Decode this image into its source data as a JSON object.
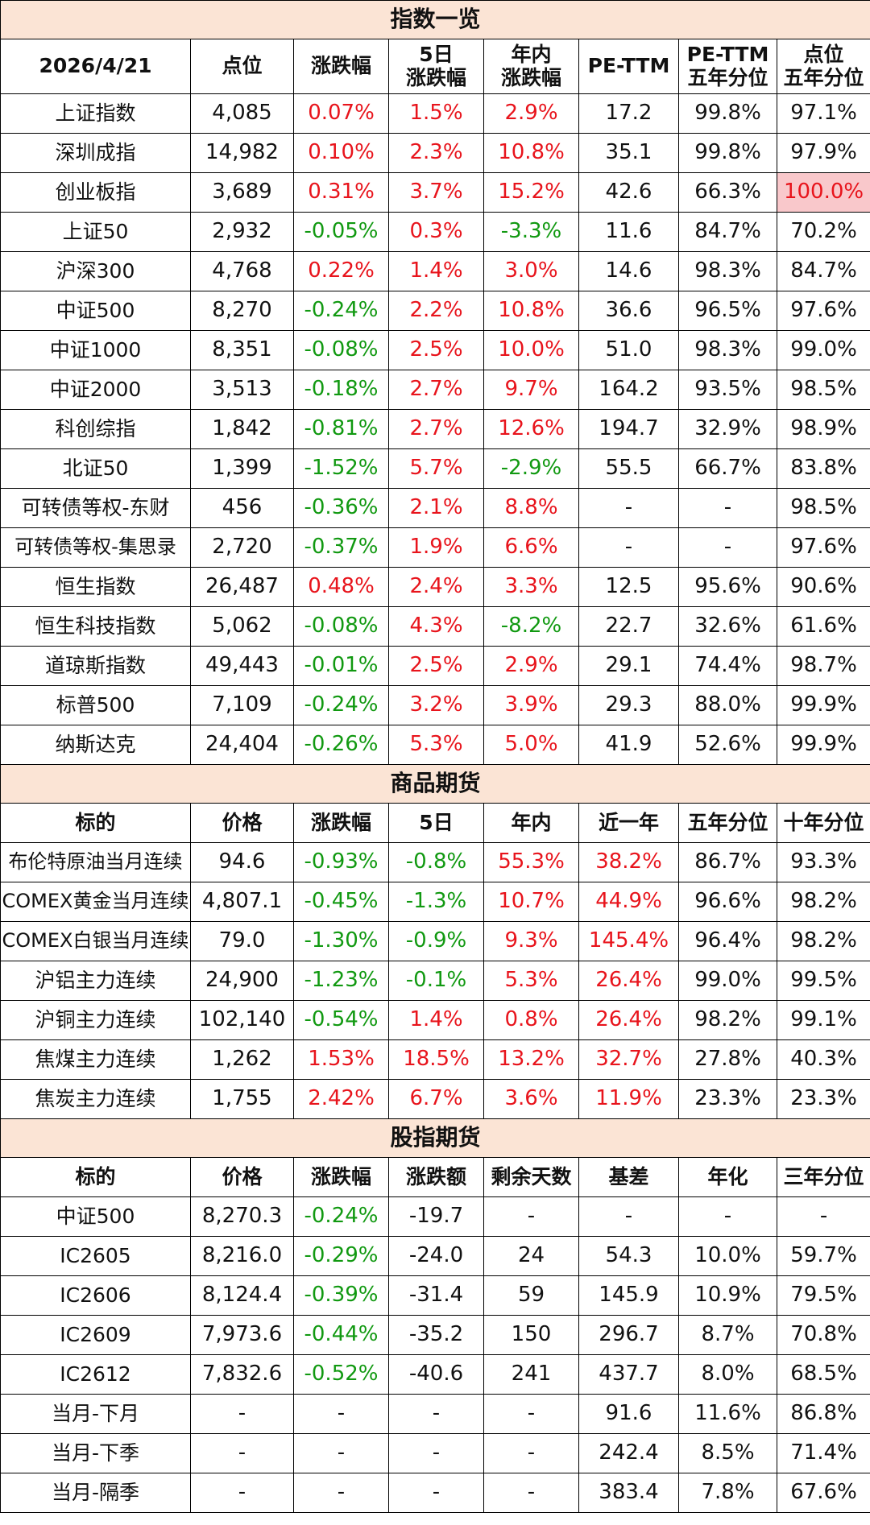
{
  "index_table": {
    "title": "指数一览",
    "date_label": "2026/4/21",
    "headers": [
      "点位",
      "涨跌幅",
      "5日\n涨跌幅",
      "年内\n涨跌幅",
      "PE-TTM",
      "PE-TTM\n五年分位",
      "点位\n五年分位"
    ],
    "rows": [
      [
        "上证指数",
        "4,085",
        "0.07%",
        "1.5%",
        "2.9%",
        "17.2",
        "99.8%",
        "97.1%"
      ],
      [
        "深圳成指",
        "14,982",
        "0.10%",
        "2.3%",
        "10.8%",
        "35.1",
        "99.8%",
        "97.9%"
      ],
      [
        "创业板指",
        "3,689",
        "0.31%",
        "3.7%",
        "15.2%",
        "42.6",
        "66.3%",
        "100.0%"
      ],
      [
        "上证50",
        "2,932",
        "-0.05%",
        "0.3%",
        "-3.3%",
        "11.6",
        "84.7%",
        "70.2%"
      ],
      [
        "沪深300",
        "4,768",
        "0.22%",
        "1.4%",
        "3.0%",
        "14.6",
        "98.3%",
        "84.7%"
      ],
      [
        "中证500",
        "8,270",
        "-0.24%",
        "2.2%",
        "10.8%",
        "36.6",
        "96.5%",
        "97.6%"
      ],
      [
        "中证1000",
        "8,351",
        "-0.08%",
        "2.5%",
        "10.0%",
        "51.0",
        "98.3%",
        "99.0%"
      ],
      [
        "中证2000",
        "3,513",
        "-0.18%",
        "2.7%",
        "9.7%",
        "164.2",
        "93.5%",
        "98.5%"
      ],
      [
        "科创综指",
        "1,842",
        "-0.81%",
        "2.7%",
        "12.6%",
        "194.7",
        "32.9%",
        "98.9%"
      ],
      [
        "北证50",
        "1,399",
        "-1.52%",
        "5.7%",
        "-2.9%",
        "55.5",
        "66.7%",
        "83.8%"
      ],
      [
        "可转债等权-东财",
        "456",
        "-0.36%",
        "2.1%",
        "8.8%",
        "-",
        "-",
        "98.5%"
      ],
      [
        "可转债等权-集思录",
        "2,720",
        "-0.37%",
        "1.9%",
        "6.6%",
        "-",
        "-",
        "97.6%"
      ],
      [
        "恒生指数",
        "26,487",
        "0.48%",
        "2.4%",
        "3.3%",
        "12.5",
        "95.6%",
        "90.6%"
      ],
      [
        "恒生科技指数",
        "5,062",
        "-0.08%",
        "4.3%",
        "-8.2%",
        "22.7",
        "32.6%",
        "61.6%"
      ],
      [
        "道琼斯指数",
        "49,443",
        "-0.01%",
        "2.5%",
        "2.9%",
        "29.1",
        "74.4%",
        "98.7%"
      ],
      [
        "标普500",
        "7,109",
        "-0.24%",
        "3.2%",
        "3.9%",
        "29.3",
        "88.0%",
        "99.9%"
      ],
      [
        "纳斯达克",
        "24,404",
        "-0.26%",
        "5.3%",
        "5.0%",
        "41.9",
        "52.6%",
        "99.9%"
      ]
    ],
    "highlight_cell": {
      "row": 2,
      "col": 7,
      "color": "#f9c8cb"
    }
  },
  "commodity_table": {
    "title": "商品期货",
    "headers": [
      "标的",
      "价格",
      "涨跌幅",
      "5日",
      "年内",
      "近一年",
      "五年分位",
      "十年分位"
    ],
    "rows": [
      [
        "布伦特原油当月连续",
        "94.6",
        "-0.93%",
        "-0.8%",
        "55.3%",
        "38.2%",
        "86.7%",
        "93.3%"
      ],
      [
        "COMEX黄金当月连续",
        "4,807.1",
        "-0.45%",
        "-1.3%",
        "10.7%",
        "44.9%",
        "96.6%",
        "98.2%"
      ],
      [
        "COMEX白银当月连续",
        "79.0",
        "-1.30%",
        "-0.9%",
        "9.3%",
        "145.4%",
        "96.4%",
        "98.2%"
      ],
      [
        "沪铝主力连续",
        "24,900",
        "-1.23%",
        "-0.1%",
        "5.3%",
        "26.4%",
        "99.0%",
        "99.5%"
      ],
      [
        "沪铜主力连续",
        "102,140",
        "-0.54%",
        "1.4%",
        "0.8%",
        "26.4%",
        "98.2%",
        "99.1%"
      ],
      [
        "焦煤主力连续",
        "1,262",
        "1.53%",
        "18.5%",
        "13.2%",
        "32.7%",
        "27.8%",
        "40.3%"
      ],
      [
        "焦炭主力连续",
        "1,755",
        "2.42%",
        "6.7%",
        "3.6%",
        "11.9%",
        "23.3%",
        "23.3%"
      ]
    ]
  },
  "futures_table": {
    "title": "股指期货",
    "headers": [
      "标的",
      "价格",
      "涨跌幅",
      "涨跌额",
      "剩余天数",
      "基差",
      "年化",
      "三年分位"
    ],
    "rows": [
      [
        "中证500",
        "8,270.3",
        "-0.24%",
        "-19.7",
        "-",
        "-",
        "-",
        "-"
      ],
      [
        "IC2605",
        "8,216.0",
        "-0.29%",
        "-24.0",
        "24",
        "54.3",
        "10.0%",
        "59.7%"
      ],
      [
        "IC2606",
        "8,124.4",
        "-0.39%",
        "-31.4",
        "59",
        "145.9",
        "10.9%",
        "79.5%"
      ],
      [
        "IC2609",
        "7,973.6",
        "-0.44%",
        "-35.2",
        "150",
        "296.7",
        "8.7%",
        "70.8%"
      ],
      [
        "IC2612",
        "7,832.6",
        "-0.52%",
        "-40.6",
        "241",
        "437.7",
        "8.0%",
        "68.5%"
      ],
      [
        "当月-下月",
        "-",
        "-",
        "-",
        "-",
        "91.6",
        "11.6%",
        "86.8%"
      ],
      [
        "当月-下季",
        "-",
        "-",
        "-",
        "-",
        "242.4",
        "8.5%",
        "71.4%"
      ],
      [
        "当月-隔季",
        "-",
        "-",
        "-",
        "-",
        "383.4",
        "7.8%",
        "67.6%"
      ]
    ]
  },
  "colors": {
    "up": "#e8141c",
    "down": "#119911",
    "section_header_bg": "#fbe4d5",
    "highlight_bg": "#f9c8cb"
  }
}
